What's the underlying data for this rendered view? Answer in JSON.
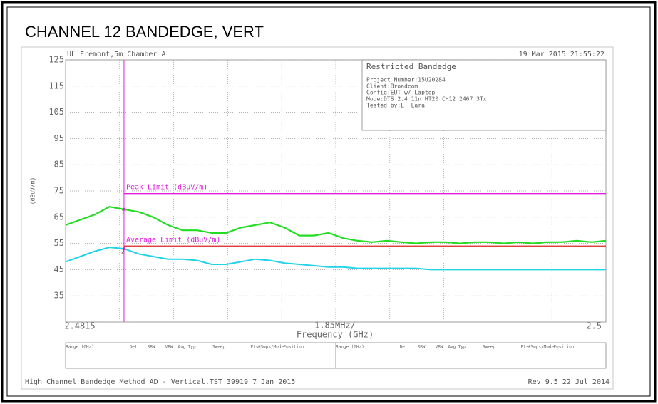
{
  "chart_data": {
    "type": "line",
    "title": "CHANNEL 12 BANDEDGE, VERT",
    "header_left": "UL Fremont,5m Chamber A",
    "header_right": "19 Mar 2015   21:55:22",
    "info_box": {
      "title": "Restricted Bandedge",
      "lines": [
        "Project Number:15U20284",
        "Client:Broadcom",
        "Config:EUT w/ Laptop",
        "Mode:DTS 2.4 11n HT20 CH12 2467 3Tx",
        "Tested by:L. Lara"
      ]
    },
    "ylabel": "(dBuV/m)",
    "xlabel": "Frequency (GHz)",
    "x_division_label": "1.85MHz/",
    "x_divisions": 10,
    "xlim": [
      2.4815,
      2.5
    ],
    "xticks": [
      2.4815,
      2.5
    ],
    "ylim": [
      25,
      125
    ],
    "yticks": [
      35,
      45,
      55,
      65,
      75,
      85,
      95,
      105,
      115,
      125
    ],
    "grid": true,
    "x": [
      2.4815,
      2.482,
      2.4825,
      2.483,
      2.4835,
      2.484,
      2.4845,
      2.485,
      2.4855,
      2.486,
      2.4865,
      2.487,
      2.4875,
      2.488,
      2.4885,
      2.489,
      2.4895,
      2.49,
      2.4905,
      2.491,
      2.4915,
      2.492,
      2.4925,
      2.493,
      2.4935,
      2.494,
      2.4945,
      2.495,
      2.4955,
      2.496,
      2.4965,
      2.497,
      2.4975,
      2.498,
      2.4985,
      2.499,
      2.4995,
      2.5
    ],
    "series": [
      {
        "color": "#22dd22",
        "values": [
          62,
          64,
          66,
          69,
          68,
          67,
          65,
          62,
          60,
          60,
          59,
          59,
          61,
          62,
          63,
          61,
          58,
          58,
          59,
          57,
          56,
          55.5,
          56,
          55.5,
          55,
          55.5,
          55.5,
          55,
          55.5,
          55.5,
          55,
          55.5,
          55,
          55.5,
          55.5,
          56,
          55.5,
          56
        ]
      },
      {
        "color": "#22d3e8",
        "values": [
          48,
          50,
          52,
          53.5,
          53,
          51,
          50,
          49,
          49,
          48.5,
          47,
          47,
          48,
          49,
          48.5,
          47.5,
          47,
          46.5,
          46,
          46,
          45.5,
          45.5,
          45.5,
          45.5,
          45.5,
          45,
          45,
          45,
          45,
          45,
          45,
          45,
          45,
          45,
          45,
          45,
          45,
          45
        ]
      }
    ],
    "limits": [
      {
        "label": "Peak Limit (dBuV/m)",
        "value": 74,
        "color": "#e020e0"
      },
      {
        "label": "Average Limit (dBuV/m)",
        "value": 54,
        "color": "#dd2222"
      }
    ],
    "marker_x": 2.4835,
    "marker_color": "#e020e0",
    "markers": [
      {
        "label": "1",
        "value": 68
      },
      {
        "label": "2",
        "value": 53
      }
    ],
    "table_headers": [
      "Range (GHz)",
      "Det",
      "RBW",
      "VBW",
      "Avg Typ",
      "Sweep",
      "Pts",
      "#Swps/Mode",
      "Position"
    ],
    "footer_left": "High Channel Bandedge Method AD - Vertical.TST 39919  7 Jan 2015",
    "footer_right": "Rev 9.5 22 Jul 2014"
  }
}
